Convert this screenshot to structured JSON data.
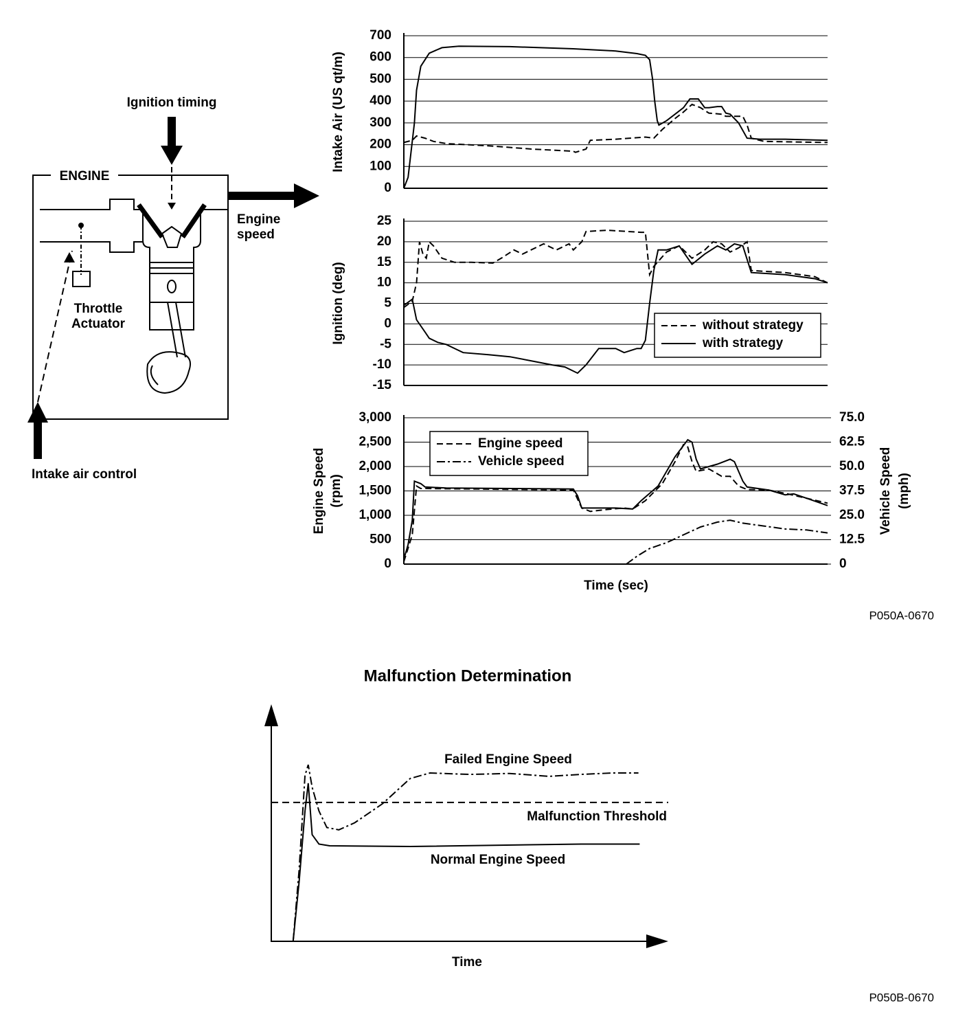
{
  "diagram": {
    "ignition_label": "Ignition timing",
    "engine_label": "ENGINE",
    "speed_label": [
      "Engine",
      "speed"
    ],
    "throttle_label": [
      "Throttle",
      "Actuator"
    ],
    "intake_label": "Intake air control"
  },
  "figure_ids": [
    "P050A-0670",
    "P050B-0670"
  ],
  "chart_data": [
    {
      "type": "line",
      "ylabel": "Intake Air (US qt/m)",
      "xlim": [
        0,
        100
      ],
      "ylim": [
        0,
        700
      ],
      "yticks": [
        0,
        100,
        200,
        300,
        400,
        500,
        600,
        700
      ],
      "grid": true,
      "series": [
        {
          "color": "#000",
          "style": "solid",
          "x": [
            0,
            1,
            2.5,
            3,
            4,
            6,
            9,
            13,
            25,
            40,
            50,
            55,
            57,
            58,
            58.7,
            59.2,
            59.8,
            60.2,
            62,
            64,
            66,
            67.5,
            69.5,
            71,
            72,
            74,
            75,
            76,
            77,
            79,
            81,
            84,
            90,
            100
          ],
          "values": [
            0,
            50,
            300,
            450,
            560,
            620,
            645,
            652,
            650,
            640,
            630,
            618,
            610,
            590,
            500,
            400,
            310,
            290,
            310,
            340,
            370,
            410,
            410,
            370,
            370,
            375,
            375,
            345,
            340,
            300,
            230,
            225,
            225,
            220
          ]
        },
        {
          "color": "#000",
          "style": "dashed",
          "x": [
            0,
            2,
            3,
            5,
            7,
            10,
            20,
            30,
            35,
            40,
            40.5,
            43,
            44,
            50,
            57,
            59,
            61,
            64,
            66,
            68,
            70,
            72,
            75,
            76,
            80,
            81,
            82,
            85,
            100
          ],
          "values": [
            210,
            220,
            240,
            230,
            215,
            205,
            195,
            180,
            175,
            170,
            165,
            180,
            220,
            225,
            235,
            230,
            270,
            320,
            350,
            385,
            370,
            345,
            340,
            330,
            330,
            290,
            230,
            215,
            210
          ]
        }
      ]
    },
    {
      "type": "line",
      "ylabel": "Ignition (deg)",
      "xlim": [
        0,
        100
      ],
      "ylim": [
        -15,
        25
      ],
      "yticks": [
        -15,
        -10,
        -5,
        0,
        5,
        10,
        15,
        20,
        25
      ],
      "grid": true,
      "legend": "lower right",
      "series": [
        {
          "name": "without strategy",
          "color": "#000",
          "style": "dashed",
          "x": [
            0,
            2,
            3,
            3.7,
            4.5,
            5.3,
            6,
            7,
            9,
            12,
            16,
            21,
            23,
            26,
            28,
            30,
            33,
            36,
            39,
            40,
            42,
            43,
            48,
            56,
            57,
            58,
            59,
            62,
            65,
            68,
            71,
            73,
            75,
            77,
            79,
            81,
            82,
            90,
            97,
            100
          ],
          "values": [
            4,
            5.5,
            10,
            20,
            17,
            16,
            20,
            19,
            16,
            15,
            15,
            14.8,
            16,
            18,
            17,
            18,
            19.5,
            18,
            19.5,
            18,
            20,
            22.5,
            22.8,
            22.3,
            22.3,
            12,
            14,
            17.5,
            19,
            16,
            18,
            20,
            19.5,
            17.5,
            18.5,
            20,
            13,
            12.5,
            11.5,
            10
          ]
        },
        {
          "name": "with strategy",
          "color": "#000",
          "style": "solid",
          "x": [
            0,
            2,
            3,
            5,
            6,
            8,
            10,
            14,
            20,
            25,
            30,
            35,
            38,
            41,
            43,
            46,
            50,
            52,
            55,
            56,
            57,
            58,
            59,
            60,
            62,
            65,
            68,
            71,
            74,
            76,
            78,
            80,
            82,
            90,
            97,
            100
          ],
          "values": [
            4.5,
            6,
            1,
            -2,
            -3.5,
            -4.5,
            -5,
            -7,
            -7.5,
            -8,
            -9,
            -10,
            -10.5,
            -12,
            -10,
            -6,
            -6,
            -7,
            -6,
            -6,
            -4,
            5,
            13,
            18,
            18,
            19,
            14.5,
            17,
            19,
            18,
            19.5,
            19,
            12.5,
            12,
            11,
            10
          ]
        }
      ]
    },
    {
      "type": "line",
      "ylabel": [
        "Engine Speed",
        "(rpm)"
      ],
      "y2label": [
        "Vehicle Speed",
        "(mph)"
      ],
      "xlabel": "Time (sec)",
      "xlim": [
        0,
        100
      ],
      "ylim": [
        0,
        3000
      ],
      "yticks": [
        0,
        500,
        {
          "value": 1000,
          "label": "1,000"
        },
        {
          "value": 1500,
          "label": "1,500"
        },
        {
          "value": 2000,
          "label": "2,000"
        },
        {
          "value": 2500,
          "label": "2,500"
        },
        {
          "value": 3000,
          "label": "3,000"
        }
      ],
      "y2lim": [
        0,
        75
      ],
      "y2ticks": [
        0,
        12.5,
        {
          "value": 25,
          "label": "25.0"
        },
        37.5,
        {
          "value": 50,
          "label": "50.0"
        },
        62.5,
        {
          "value": 75,
          "label": "75.0"
        }
      ],
      "grid": true,
      "legend": "upper left",
      "series": [
        {
          "name": "Engine speed",
          "color": "#000",
          "style": "dashed",
          "x": [
            0,
            2,
            3,
            4,
            40,
            42,
            44,
            48,
            52,
            54,
            57,
            61,
            64,
            66,
            67,
            68,
            69,
            72,
            75,
            77,
            79,
            81,
            86,
            90,
            95,
            100
          ],
          "values": [
            50,
            600,
            1600,
            1550,
            1520,
            1150,
            1080,
            1120,
            1150,
            1130,
            1300,
            1650,
            2100,
            2450,
            2400,
            2100,
            1900,
            1950,
            1800,
            1800,
            1600,
            1530,
            1520,
            1450,
            1350,
            1250
          ]
        },
        {
          "color": "#000",
          "style": "solid",
          "x": [
            0,
            1,
            2,
            2.5,
            4,
            5,
            10,
            40,
            41,
            42,
            50,
            54,
            56,
            60,
            64,
            67,
            68,
            69,
            70,
            74,
            77,
            78,
            80,
            81,
            86,
            90,
            92,
            95,
            100
          ],
          "values": [
            100,
            400,
            900,
            1700,
            1650,
            1580,
            1560,
            1540,
            1400,
            1150,
            1150,
            1130,
            1300,
            1600,
            2200,
            2550,
            2500,
            2150,
            1950,
            2050,
            2150,
            2100,
            1700,
            1580,
            1520,
            1420,
            1440,
            1350,
            1200
          ]
        },
        {
          "name": "Vehicle speed",
          "color": "#000",
          "style": "dashdot",
          "axis": "y2",
          "x": [
            52.5,
            55,
            58,
            62,
            66,
            70,
            74,
            77,
            80,
            85,
            90,
            95,
            100
          ],
          "values": [
            0,
            4,
            8,
            11,
            15,
            19,
            21.5,
            22.5,
            21,
            19.5,
            18,
            17.5,
            16
          ]
        }
      ]
    },
    {
      "type": "line",
      "title": "Malfunction Determination",
      "xlabel": "Time",
      "xlim": [
        0,
        100
      ],
      "ylim": [
        0,
        100
      ],
      "threshold": 58.6,
      "threshold_label": "Malfunction Threshold",
      "series": [
        {
          "name": "Failed Engine Speed",
          "color": "#000",
          "style": "dashdot",
          "x": [
            5.5,
            7,
            8.5,
            9.3,
            10.3,
            12,
            14,
            17,
            21,
            28,
            35,
            40,
            50,
            60,
            70,
            78,
            86,
            92.5
          ],
          "values": [
            0,
            30,
            70,
            74.5,
            65,
            55,
            48,
            47,
            50,
            58,
            68.7,
            71,
            70.4,
            70.8,
            69.6,
            70.4,
            71,
            71
          ]
        },
        {
          "name": "Normal Engine Speed",
          "color": "#000",
          "style": "solid",
          "x": [
            5.5,
            7,
            8.5,
            9.3,
            10.3,
            12,
            14.7,
            35,
            78,
            92.8
          ],
          "values": [
            0,
            25,
            55,
            66.7,
            45,
            41,
            40.3,
            40,
            41,
            41
          ]
        }
      ]
    }
  ]
}
